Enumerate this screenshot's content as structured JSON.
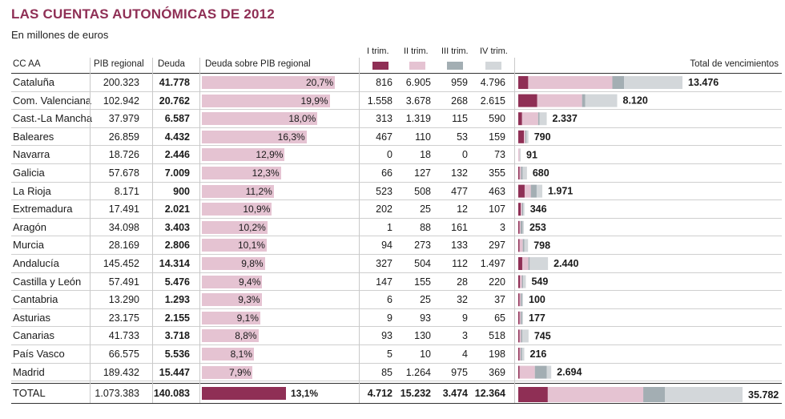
{
  "title": "LAS CUENTAS AUTONÓMICAS DE 2012",
  "subtitle": "En millones de euros",
  "headers": {
    "ccaa": "CC AA",
    "pib": "PIB regional",
    "deuda": "Deuda",
    "deuda_pib": "Deuda sobre PIB regional",
    "total_venc": "Total de vencimientos"
  },
  "quarters": [
    {
      "label": "I trim.",
      "color": "#8f2f55"
    },
    {
      "label": "II trim.",
      "color": "#e5c3d2"
    },
    {
      "label": "III trim.",
      "color": "#a3aeb3"
    },
    {
      "label": "IV trim.",
      "color": "#d3d7da"
    }
  ],
  "rows": [
    {
      "name": "Cataluña",
      "pib": "200.323",
      "deuda": "41.778",
      "pct": 20.7,
      "pct_label": "20,7%",
      "q": [
        816,
        6905,
        959,
        4796
      ],
      "q_labels": [
        "816",
        "6.905",
        "959",
        "4.796"
      ],
      "total": "13.476"
    },
    {
      "name": "Com. Valenciana",
      "pib": "102.942",
      "deuda": "20.762",
      "pct": 19.9,
      "pct_label": "19,9%",
      "q": [
        1558,
        3678,
        268,
        2615
      ],
      "q_labels": [
        "1.558",
        "3.678",
        "268",
        "2.615"
      ],
      "total": "8.120"
    },
    {
      "name": "Cast.-La Mancha",
      "pib": "37.979",
      "deuda": "6.587",
      "pct": 18.0,
      "pct_label": "18,0%",
      "q": [
        313,
        1319,
        115,
        590
      ],
      "q_labels": [
        "313",
        "1.319",
        "115",
        "590"
      ],
      "total": "2.337"
    },
    {
      "name": "Baleares",
      "pib": "26.859",
      "deuda": "4.432",
      "pct": 16.3,
      "pct_label": "16,3%",
      "q": [
        467,
        110,
        53,
        159
      ],
      "q_labels": [
        "467",
        "110",
        "53",
        "159"
      ],
      "total": "790"
    },
    {
      "name": "Navarra",
      "pib": "18.726",
      "deuda": "2.446",
      "pct": 12.9,
      "pct_label": "12,9%",
      "q": [
        0,
        18,
        0,
        73
      ],
      "q_labels": [
        "0",
        "18",
        "0",
        "73"
      ],
      "total": "91"
    },
    {
      "name": "Galicia",
      "pib": "57.678",
      "deuda": "7.009",
      "pct": 12.3,
      "pct_label": "12,3%",
      "q": [
        66,
        127,
        132,
        355
      ],
      "q_labels": [
        "66",
        "127",
        "132",
        "355"
      ],
      "total": "680"
    },
    {
      "name": "La Rioja",
      "pib": "8.171",
      "deuda": "900",
      "pct": 11.2,
      "pct_label": "11,2%",
      "q": [
        523,
        508,
        477,
        463
      ],
      "q_labels": [
        "523",
        "508",
        "477",
        "463"
      ],
      "total": "1.971"
    },
    {
      "name": "Extremadura",
      "pib": "17.491",
      "deuda": "2.021",
      "pct": 10.9,
      "pct_label": "10,9%",
      "q": [
        202,
        25,
        12,
        107
      ],
      "q_labels": [
        "202",
        "25",
        "12",
        "107"
      ],
      "total": "346"
    },
    {
      "name": "Aragón",
      "pib": "34.098",
      "deuda": "3.403",
      "pct": 10.2,
      "pct_label": "10,2%",
      "q": [
        1,
        88,
        161,
        3
      ],
      "q_labels": [
        "1",
        "88",
        "161",
        "3"
      ],
      "total": "253"
    },
    {
      "name": "Murcia",
      "pib": "28.169",
      "deuda": "2.806",
      "pct": 10.1,
      "pct_label": "10,1%",
      "q": [
        94,
        273,
        133,
        297
      ],
      "q_labels": [
        "94",
        "273",
        "133",
        "297"
      ],
      "total": "798"
    },
    {
      "name": "Andalucía",
      "pib": "145.452",
      "deuda": "14.314",
      "pct": 9.8,
      "pct_label": "9,8%",
      "q": [
        327,
        504,
        112,
        1497
      ],
      "q_labels": [
        "327",
        "504",
        "112",
        "1.497"
      ],
      "total": "2.440"
    },
    {
      "name": "Castilla y León",
      "pib": "57.491",
      "deuda": "5.476",
      "pct": 9.4,
      "pct_label": "9,4%",
      "q": [
        147,
        155,
        28,
        220
      ],
      "q_labels": [
        "147",
        "155",
        "28",
        "220"
      ],
      "total": "549"
    },
    {
      "name": "Cantabria",
      "pib": "13.290",
      "deuda": "1.293",
      "pct": 9.3,
      "pct_label": "9,3%",
      "q": [
        6,
        25,
        32,
        37
      ],
      "q_labels": [
        "6",
        "25",
        "32",
        "37"
      ],
      "total": "100"
    },
    {
      "name": "Asturias",
      "pib": "23.175",
      "deuda": "2.155",
      "pct": 9.1,
      "pct_label": "9,1%",
      "q": [
        9,
        93,
        9,
        65
      ],
      "q_labels": [
        "9",
        "93",
        "9",
        "65"
      ],
      "total": "177"
    },
    {
      "name": "Canarias",
      "pib": "41.733",
      "deuda": "3.718",
      "pct": 8.8,
      "pct_label": "8,8%",
      "q": [
        93,
        130,
        3,
        518
      ],
      "q_labels": [
        "93",
        "130",
        "3",
        "518"
      ],
      "total": "745"
    },
    {
      "name": "País Vasco",
      "pib": "66.575",
      "deuda": "5.536",
      "pct": 8.1,
      "pct_label": "8,1%",
      "q": [
        5,
        10,
        4,
        198
      ],
      "q_labels": [
        "5",
        "10",
        "4",
        "198"
      ],
      "total": "216"
    },
    {
      "name": "Madrid",
      "pib": "189.432",
      "deuda": "15.447",
      "pct": 7.9,
      "pct_label": "7,9%",
      "q": [
        85,
        1264,
        975,
        369
      ],
      "q_labels": [
        "85",
        "1.264",
        "975",
        "369"
      ],
      "total": "2.694"
    }
  ],
  "total_row": {
    "name": "TOTAL",
    "pib": "1.073.383",
    "deuda": "140.083",
    "pct": 13.1,
    "pct_label": "13,1%",
    "q": [
      4712,
      15232,
      3474,
      12364
    ],
    "q_labels": [
      "4.712",
      "15.232",
      "3.474",
      "12.364"
    ],
    "total": "35.782"
  },
  "chart_data": [
    {
      "type": "bar",
      "title": "Deuda sobre PIB regional",
      "categories": [
        "Cataluña",
        "Com. Valenciana",
        "Cast.-La Mancha",
        "Baleares",
        "Navarra",
        "Galicia",
        "La Rioja",
        "Extremadura",
        "Aragón",
        "Murcia",
        "Andalucía",
        "Castilla y León",
        "Cantabria",
        "Asturias",
        "Canarias",
        "País Vasco",
        "Madrid",
        "TOTAL"
      ],
      "values": [
        20.7,
        19.9,
        18.0,
        16.3,
        12.9,
        12.3,
        11.2,
        10.9,
        10.2,
        10.1,
        9.8,
        9.4,
        9.3,
        9.1,
        8.8,
        8.1,
        7.9,
        13.1
      ],
      "unit": "%"
    },
    {
      "type": "bar",
      "stacked": true,
      "title": "Total de vencimientos",
      "categories": [
        "Cataluña",
        "Com. Valenciana",
        "Cast.-La Mancha",
        "Baleares",
        "Navarra",
        "Galicia",
        "La Rioja",
        "Extremadura",
        "Aragón",
        "Murcia",
        "Andalucía",
        "Castilla y León",
        "Cantabria",
        "Asturias",
        "Canarias",
        "País Vasco",
        "Madrid",
        "TOTAL"
      ],
      "series": [
        {
          "name": "I trim.",
          "values": [
            816,
            1558,
            313,
            467,
            0,
            66,
            523,
            202,
            1,
            94,
            327,
            147,
            6,
            9,
            93,
            5,
            85,
            4712
          ]
        },
        {
          "name": "II trim.",
          "values": [
            6905,
            3678,
            1319,
            110,
            18,
            127,
            508,
            25,
            88,
            273,
            504,
            155,
            25,
            93,
            130,
            10,
            1264,
            15232
          ]
        },
        {
          "name": "III trim.",
          "values": [
            959,
            268,
            115,
            53,
            0,
            132,
            477,
            12,
            161,
            133,
            112,
            28,
            32,
            9,
            3,
            4,
            975,
            3474
          ]
        },
        {
          "name": "IV trim.",
          "values": [
            4796,
            2615,
            590,
            159,
            73,
            355,
            463,
            107,
            3,
            297,
            1497,
            220,
            37,
            65,
            518,
            198,
            369,
            12364
          ]
        }
      ],
      "totals": [
        13476,
        8120,
        2337,
        790,
        91,
        680,
        1971,
        346,
        253,
        798,
        2440,
        549,
        100,
        177,
        745,
        216,
        2694,
        35782
      ]
    }
  ]
}
